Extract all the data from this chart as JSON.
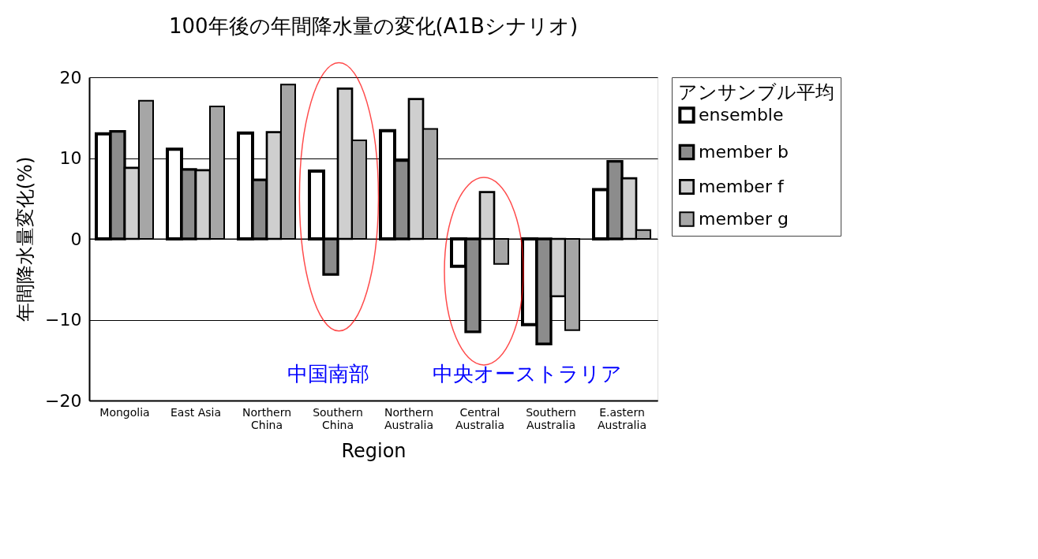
{
  "chart_data": {
    "type": "bar",
    "title": "100年後の年間降水量の変化(A1Bシナリオ)",
    "xlabel": "Region",
    "ylabel": "年間降水量変化(%)",
    "legend_title": "アンサンブル平均",
    "categories": [
      "Mongolia",
      "East Asia",
      "Northern China",
      "Southern China",
      "Northern Australia",
      "Central Australia",
      "Southern Australia",
      "E.astern Australia"
    ],
    "series": [
      {
        "name": "ensemble",
        "color": "#ffffff",
        "values": [
          13.0,
          11.1,
          13.1,
          8.4,
          13.4,
          -3.4,
          -10.6,
          6.1
        ]
      },
      {
        "name": "member b",
        "color": "#8c8c8c",
        "values": [
          13.3,
          8.6,
          7.3,
          -4.4,
          9.7,
          -11.5,
          -13.0,
          9.6
        ]
      },
      {
        "name": "member f",
        "color": "#cfcfcf",
        "values": [
          8.8,
          8.5,
          13.2,
          18.6,
          17.3,
          5.8,
          -7.1,
          7.5
        ]
      },
      {
        "name": "member g",
        "color": "#a6a6a6",
        "values": [
          17.1,
          16.4,
          19.1,
          12.2,
          13.6,
          -3.1,
          -11.3,
          1.1
        ]
      }
    ],
    "ylim": [
      -20,
      20
    ],
    "yticks": [
      -20,
      -10,
      0,
      10,
      20
    ],
    "grid": "y",
    "legend": "right",
    "annotations": [
      "中国南部",
      "中央オーストラリア"
    ]
  }
}
